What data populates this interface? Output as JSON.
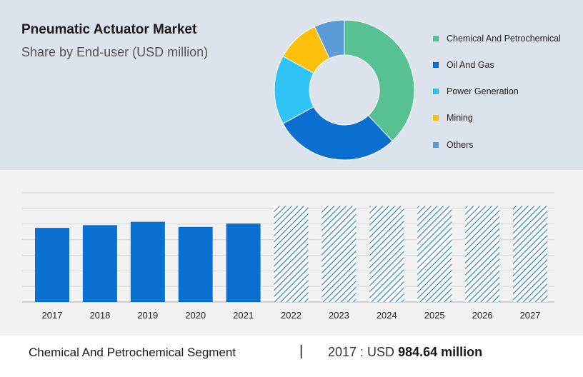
{
  "header": {
    "title": "Pneumatic Actuator Market",
    "subtitle": "Share by End-user (USD million)"
  },
  "chart_data": [
    {
      "type": "pie",
      "style": "donut",
      "labels": [
        "Chemical And Petrochemical",
        "Oil And Gas",
        "Power Generation",
        "Mining",
        "Others"
      ],
      "values": [
        38,
        29,
        16,
        10,
        7
      ],
      "colors": [
        "#57c193",
        "#0a6fcf",
        "#30c3f6",
        "#fcbf0a",
        "#5b9bd8"
      ],
      "legend_position": "right"
    },
    {
      "type": "bar",
      "categories": [
        "2017",
        "2018",
        "2019",
        "2020",
        "2021",
        "2022",
        "2023",
        "2024",
        "2025",
        "2026",
        "2027"
      ],
      "values": [
        984.64,
        1020,
        1065,
        997,
        1042,
        1275,
        1275,
        1275,
        1275,
        1275,
        1275
      ],
      "forecast_from": "2022",
      "ylim": [
        0,
        1450
      ],
      "grid": true,
      "colors": {
        "actual": "#0a6fcf",
        "forecast": "#0a6fcf"
      }
    }
  ],
  "footer": {
    "segment": "Chemical And Petrochemical Segment",
    "separator": "|",
    "year_label": "2017 : USD",
    "value_label": "984.64 million"
  }
}
